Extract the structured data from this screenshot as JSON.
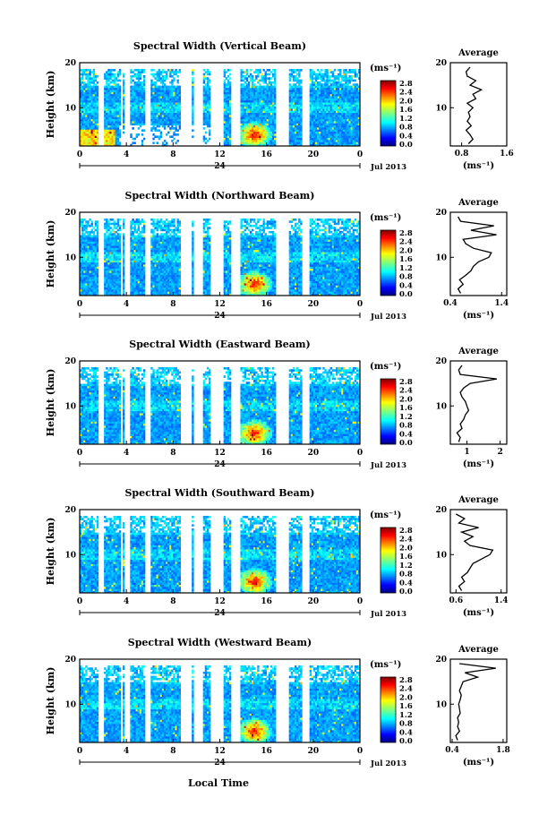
{
  "figure": {
    "local_time_label": "Local Time",
    "y_label": "Height (km)",
    "avg_title": "Average",
    "unit_label": "(ms⁻¹)",
    "date_label": "Jul 2013",
    "day_label": "24"
  },
  "chart_data": [
    {
      "type": "heatmap",
      "title": "Spectral Width (Vertical Beam)",
      "ylabel": "Height (km)",
      "x_ticks": [
        "0",
        "4",
        "8",
        "12",
        "16",
        "20",
        "0"
      ],
      "y_ticks": [
        "20",
        "10"
      ],
      "colorbar_ticks": [
        "2.8",
        "2.4",
        "2.0",
        "1.6",
        "1.2",
        "0.8",
        "0.4",
        "0.0"
      ],
      "xlim": [
        0,
        24
      ],
      "ylim": [
        1.5,
        20
      ],
      "clim": [
        0.0,
        3.0
      ],
      "average_profile": {
        "title": "Average",
        "xlabel": "(ms⁻¹)",
        "x_ticks": [
          "0.8",
          "1.6"
        ],
        "y_ticks": [
          "20",
          "10"
        ],
        "xlim": [
          0.6,
          1.6
        ],
        "heights": [
          2,
          3,
          4,
          5,
          6,
          7,
          8,
          9,
          10,
          11,
          12,
          13,
          14,
          15,
          16,
          17,
          18,
          19
        ],
        "values": [
          0.92,
          1.0,
          0.95,
          0.88,
          0.97,
          0.9,
          0.95,
          0.92,
          1.0,
          0.9,
          1.05,
          1.0,
          1.15,
          0.95,
          1.05,
          0.9,
          0.88,
          0.95
        ]
      }
    },
    {
      "type": "heatmap",
      "title": "Spectral Width (Northward Beam)",
      "ylabel": "Height (km)",
      "x_ticks": [
        "0",
        "4",
        "8",
        "12",
        "16",
        "20",
        "0"
      ],
      "y_ticks": [
        "20",
        "10"
      ],
      "colorbar_ticks": [
        "2.8",
        "2.4",
        "2.0",
        "1.6",
        "1.2",
        "0.8",
        "0.4",
        "0.0"
      ],
      "xlim": [
        0,
        24
      ],
      "ylim": [
        1.5,
        20
      ],
      "clim": [
        0.0,
        3.0
      ],
      "average_profile": {
        "title": "Average",
        "xlabel": "(ms⁻¹)",
        "x_ticks": [
          "0.4",
          "1.4"
        ],
        "y_ticks": [
          "20",
          "10"
        ],
        "xlim": [
          0.4,
          1.5
        ],
        "heights": [
          2,
          3,
          4,
          5,
          6,
          7,
          8,
          9,
          10,
          11,
          12,
          13,
          14,
          15,
          16,
          17,
          18,
          19
        ],
        "values": [
          0.6,
          0.55,
          0.65,
          0.58,
          0.7,
          0.8,
          0.85,
          0.95,
          1.15,
          1.2,
          0.85,
          0.7,
          0.65,
          1.3,
          0.8,
          1.25,
          0.6,
          0.55
        ]
      }
    },
    {
      "type": "heatmap",
      "title": "Spectral Width (Eastward Beam)",
      "ylabel": "Height (km)",
      "x_ticks": [
        "0",
        "4",
        "8",
        "12",
        "16",
        "20",
        "0"
      ],
      "y_ticks": [
        "20",
        "10"
      ],
      "colorbar_ticks": [
        "2.8",
        "2.4",
        "2.0",
        "1.6",
        "1.2",
        "0.8",
        "0.4",
        "0.0"
      ],
      "xlim": [
        0,
        24
      ],
      "ylim": [
        1.5,
        20
      ],
      "clim": [
        0.0,
        3.0
      ],
      "average_profile": {
        "title": "Average",
        "xlabel": "(ms⁻¹)",
        "x_ticks": [
          "1",
          "2"
        ],
        "y_ticks": [
          "20",
          "10"
        ],
        "xlim": [
          0.5,
          2.2
        ],
        "heights": [
          2,
          3,
          4,
          5,
          6,
          7,
          8,
          9,
          10,
          11,
          12,
          13,
          14,
          15,
          16,
          17,
          18,
          19
        ],
        "values": [
          0.75,
          0.8,
          0.7,
          0.85,
          0.8,
          0.9,
          0.95,
          1.05,
          1.0,
          0.95,
          0.85,
          0.8,
          0.9,
          1.1,
          1.9,
          0.8,
          0.75,
          0.85
        ]
      }
    },
    {
      "type": "heatmap",
      "title": "Spectral Width (Southward Beam)",
      "ylabel": "Height (km)",
      "x_ticks": [
        "0",
        "4",
        "8",
        "12",
        "16",
        "20",
        "0"
      ],
      "y_ticks": [
        "20",
        "10"
      ],
      "colorbar_ticks": [
        "2.8",
        "2.4",
        "2.0",
        "1.6",
        "1.2",
        "0.8",
        "0.4",
        "0.0"
      ],
      "xlim": [
        0,
        24
      ],
      "ylim": [
        1.5,
        20
      ],
      "clim": [
        0.0,
        3.0
      ],
      "average_profile": {
        "title": "Average",
        "xlabel": "(ms⁻¹)",
        "x_ticks": [
          "0.6",
          "1.4"
        ],
        "y_ticks": [
          "20",
          "10"
        ],
        "xlim": [
          0.5,
          1.5
        ],
        "heights": [
          2,
          3,
          4,
          5,
          6,
          7,
          8,
          9,
          10,
          11,
          12,
          13,
          14,
          15,
          16,
          17,
          18,
          19
        ],
        "values": [
          0.7,
          0.65,
          0.75,
          0.7,
          0.8,
          0.85,
          0.9,
          1.05,
          1.2,
          1.25,
          0.85,
          0.75,
          0.9,
          0.7,
          1.0,
          0.65,
          0.75,
          0.6
        ]
      }
    },
    {
      "type": "heatmap",
      "title": "Spectral Width (Westward Beam)",
      "ylabel": "Height (km)",
      "x_ticks": [
        "0",
        "4",
        "8",
        "12",
        "16",
        "20",
        "0"
      ],
      "y_ticks": [
        "20",
        "10"
      ],
      "colorbar_ticks": [
        "2.8",
        "2.4",
        "2.0",
        "1.6",
        "1.2",
        "0.8",
        "0.4",
        "0.0"
      ],
      "xlim": [
        0,
        24
      ],
      "ylim": [
        1.5,
        20
      ],
      "clim": [
        0.0,
        3.0
      ],
      "average_profile": {
        "title": "Average",
        "xlabel": "(ms⁻¹)",
        "x_ticks": [
          "0.4",
          "1.8"
        ],
        "y_ticks": [
          "20",
          "10"
        ],
        "xlim": [
          0.35,
          1.9
        ],
        "heights": [
          2,
          3,
          4,
          5,
          6,
          7,
          8,
          9,
          10,
          11,
          12,
          13,
          14,
          15,
          16,
          17,
          18,
          19
        ],
        "values": [
          0.55,
          0.5,
          0.6,
          0.55,
          0.58,
          0.55,
          0.62,
          0.6,
          0.58,
          0.62,
          0.65,
          0.6,
          0.65,
          0.7,
          1.1,
          0.75,
          1.6,
          0.6
        ]
      }
    }
  ]
}
